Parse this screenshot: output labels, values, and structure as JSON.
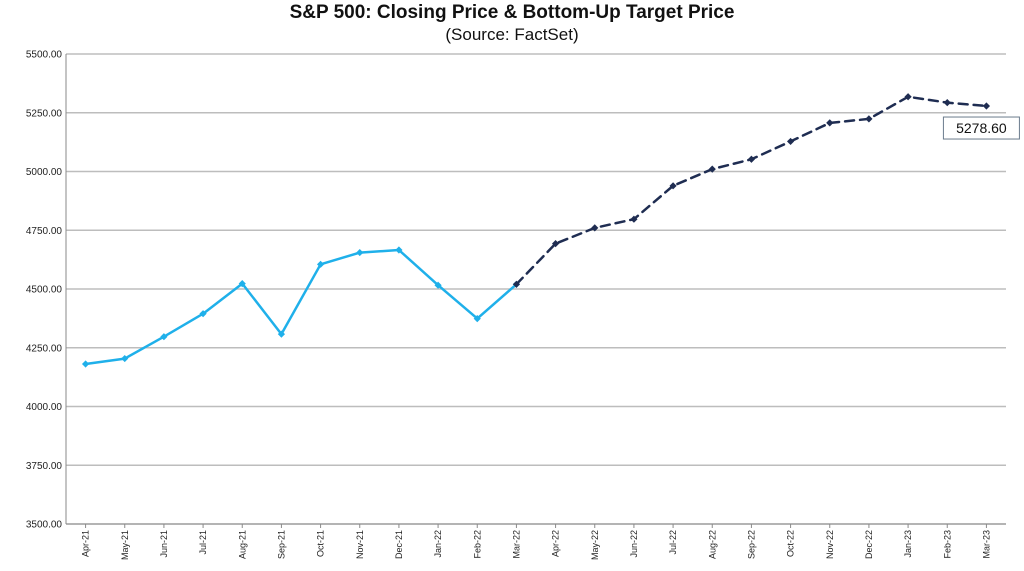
{
  "chart_data": {
    "type": "line",
    "title": "S&P 500: Closing Price & Bottom-Up Target Price",
    "subtitle": "(Source: FactSet)",
    "categories": [
      "Apr-21",
      "May-21",
      "Jun-21",
      "Jul-21",
      "Aug-21",
      "Sep-21",
      "Oct-21",
      "Nov-21",
      "Dec-21",
      "Jan-22",
      "Feb-22",
      "Mar-22",
      "Apr-22",
      "May-22",
      "Jun-22",
      "Jul-22",
      "Aug-22",
      "Sep-22",
      "Oct-22",
      "Nov-22",
      "Dec-22",
      "Jan-23",
      "Feb-23",
      "Mar-23"
    ],
    "series": [
      {
        "style": "solid",
        "color": "#1fb0ea",
        "values": [
          4181,
          4204,
          4297,
          4395,
          4523,
          4308,
          4605,
          4655,
          4666,
          4516,
          4374,
          4520,
          null,
          null,
          null,
          null,
          null,
          null,
          null,
          null,
          null,
          null,
          null,
          null
        ]
      },
      {
        "style": "dashed",
        "color": "#1f2d52",
        "values": [
          null,
          null,
          null,
          null,
          null,
          null,
          null,
          null,
          null,
          null,
          null,
          4520,
          4693,
          4760,
          4797,
          4939,
          5010,
          5052,
          5128,
          5207,
          5224,
          5318,
          5293,
          5278.6
        ]
      }
    ],
    "yticks": [
      "3500.00",
      "3750.00",
      "4000.00",
      "4250.00",
      "4500.00",
      "4750.00",
      "5000.00",
      "5250.00",
      "5500.00"
    ],
    "ylim": [
      3500,
      5500
    ],
    "grid": true,
    "annotations": [
      {
        "text": "5278.60",
        "series": 1,
        "index": 23
      }
    ]
  }
}
